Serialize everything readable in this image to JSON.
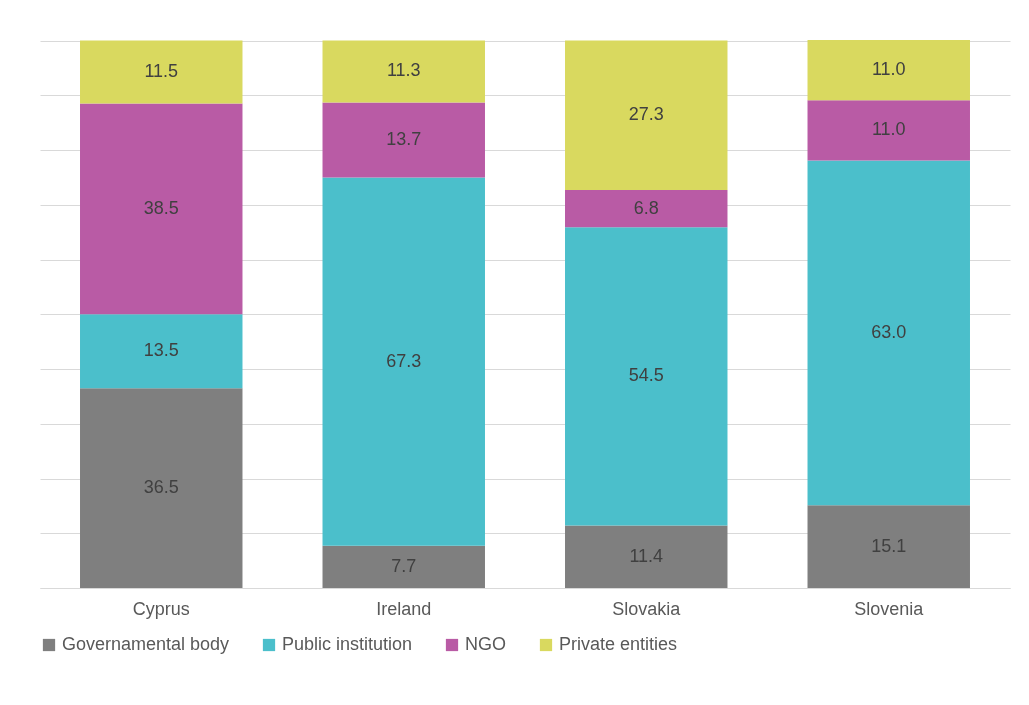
{
  "chart_data": {
    "type": "bar",
    "stacked": true,
    "categories": [
      "Cyprus",
      "Ireland",
      "Slovakia",
      "Slovenia"
    ],
    "series": [
      {
        "name": "Governamental body",
        "color": "#7f7f7f",
        "values": [
          36.5,
          7.7,
          11.4,
          15.1
        ],
        "value_labels": [
          "36.5",
          "7.7",
          "11.4",
          "15.1"
        ]
      },
      {
        "name": "Public institution",
        "color": "#4bbfcb",
        "values": [
          13.5,
          67.3,
          54.5,
          63.0
        ],
        "value_labels": [
          "13.5",
          "67.3",
          "54.5",
          "63.0"
        ]
      },
      {
        "name": "NGO",
        "color": "#b95ba5",
        "values": [
          38.5,
          13.7,
          6.8,
          11.0
        ],
        "value_labels": [
          "38.5",
          "13.7",
          "6.8",
          "11.0"
        ]
      },
      {
        "name": "Private entities",
        "color": "#d9d95f",
        "values": [
          11.5,
          11.3,
          27.3,
          11.0
        ],
        "value_labels": [
          "11.5",
          "11.3",
          "27.3",
          "11.0"
        ]
      }
    ],
    "ylim": [
      0,
      100.1
    ],
    "yticks": [
      {
        "value": 0,
        "label": null
      },
      {
        "value": 10,
        "label": null
      },
      {
        "value": 20,
        "label": null
      },
      {
        "value": 30,
        "label": null
      },
      {
        "value": 40,
        "label": null
      },
      {
        "value": 50,
        "label": null
      },
      {
        "value": 60,
        "label": null
      },
      {
        "value": 70,
        "label": null
      },
      {
        "value": 80,
        "label": null
      },
      {
        "value": 90,
        "label": null
      },
      {
        "value": 100,
        "label": null
      }
    ],
    "grid": "y",
    "tick_labels": "x",
    "legend": "bottom"
  }
}
